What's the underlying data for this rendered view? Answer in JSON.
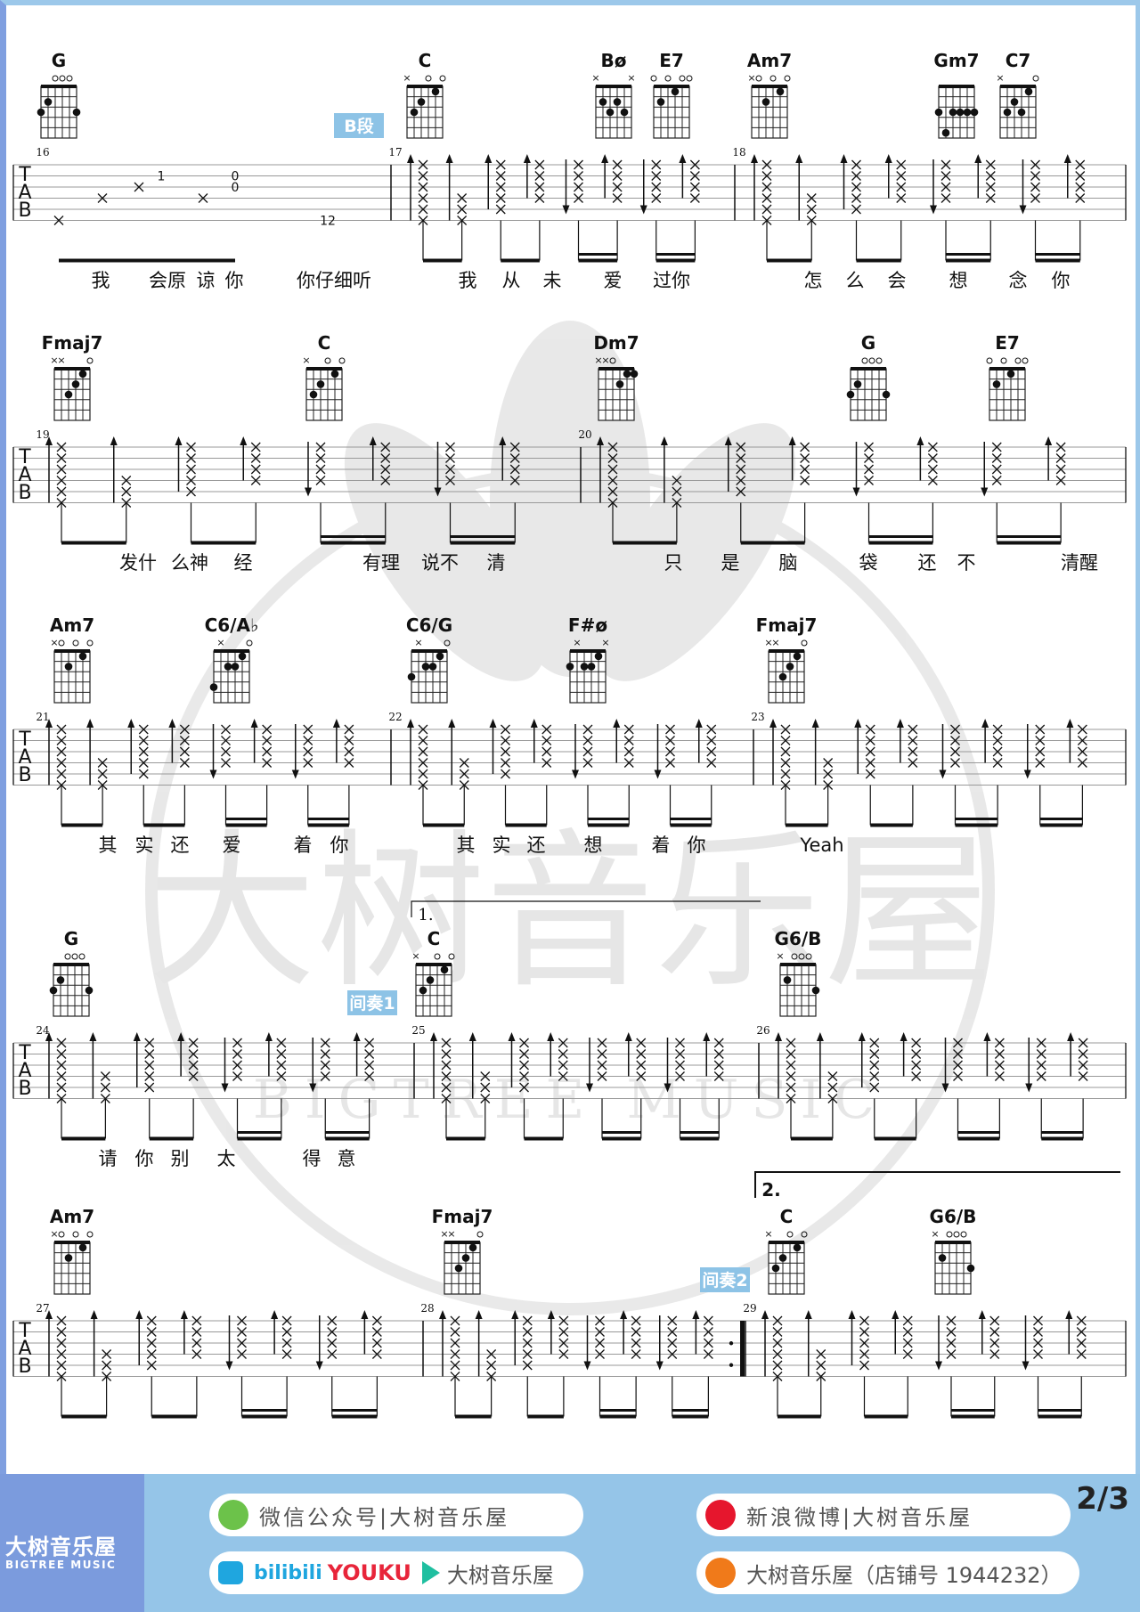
{
  "watermark": {
    "logo_text": "大树音乐屋",
    "logo_sub": "BIGTREE MUSIC"
  },
  "section_labels": {
    "b": "B段",
    "interlude1": "间奏1",
    "interlude2": "间奏2"
  },
  "voltas": {
    "first": "1.",
    "second": "2."
  },
  "systems": [
    {
      "measures": [
        "16",
        "17",
        "18"
      ],
      "chords": [
        {
          "name": "G",
          "frets": "320003"
        },
        {
          "name": "C",
          "frets": "x32010"
        },
        {
          "name": "Bø",
          "frets": "x2323x"
        },
        {
          "name": "E7",
          "frets": "020100"
        },
        {
          "name": "Am7",
          "frets": "x02010"
        },
        {
          "name": "Gm7",
          "frets": "353333"
        },
        {
          "name": "C7",
          "frets": "x32310"
        }
      ],
      "lyrics": [
        "我",
        "会原",
        "谅",
        "你",
        "你仔细听",
        "我",
        "从",
        "未",
        "爱",
        "过你",
        "怎",
        "么",
        "会",
        "想",
        "念",
        "你"
      ],
      "fret_numbers": [
        "1",
        "0",
        "0",
        "12"
      ]
    },
    {
      "measures": [
        "19",
        "20"
      ],
      "chords": [
        {
          "name": "Fmaj7",
          "frets": "xx3210"
        },
        {
          "name": "C",
          "frets": "x32010"
        },
        {
          "name": "Dm7",
          "frets": "xx0211"
        },
        {
          "name": "G",
          "frets": "320003"
        },
        {
          "name": "E7",
          "frets": "020100"
        }
      ],
      "lyrics": [
        "发什",
        "么神",
        "经",
        "有理",
        "说不",
        "清",
        "只",
        "是",
        "脑",
        "袋",
        "还",
        "不",
        "清醒"
      ]
    },
    {
      "measures": [
        "21",
        "22",
        "23"
      ],
      "chords": [
        {
          "name": "Am7",
          "frets": "x02010"
        },
        {
          "name": "C6/A♭",
          "frets": "4x2210"
        },
        {
          "name": "C6/G",
          "frets": "3x2210"
        },
        {
          "name": "F#ø",
          "frets": "2x221x"
        },
        {
          "name": "Fmaj7",
          "frets": "xx3210"
        }
      ],
      "lyrics": [
        "其",
        "实",
        "还",
        "爱",
        "着",
        "你",
        "其",
        "实",
        "还",
        "想",
        "着",
        "你",
        "Yeah"
      ]
    },
    {
      "measures": [
        "24",
        "25",
        "26"
      ],
      "chords": [
        {
          "name": "G",
          "frets": "320003"
        },
        {
          "name": "C",
          "frets": "x32010"
        },
        {
          "name": "G6/B",
          "frets": "x20003"
        }
      ],
      "lyrics": [
        "请",
        "你",
        "别",
        "太",
        "得",
        "意"
      ]
    },
    {
      "measures": [
        "27",
        "28",
        "29"
      ],
      "chords": [
        {
          "name": "Am7",
          "frets": "x02010"
        },
        {
          "name": "Fmaj7",
          "frets": "xx3210"
        },
        {
          "name": "C",
          "frets": "x32010"
        },
        {
          "name": "G6/B",
          "frets": "x20003"
        }
      ],
      "lyrics": []
    }
  ],
  "footer": {
    "brand_cn": "大树音乐屋",
    "brand_en": "BIGTREE MUSIC",
    "page": "2/3",
    "wechat": "微信公众号|大树音乐屋",
    "weibo": "新浪微博|大树音乐屋",
    "bilibili": "bilibili",
    "youku": "YOUKU",
    "video_name": "大树音乐屋",
    "taobao": "大树音乐屋（店铺号 1944232）"
  },
  "colors": {
    "label_bg": "#8dc3e6",
    "footer_bg": "#95c5e8",
    "brand_bg": "#7b9bdd"
  }
}
